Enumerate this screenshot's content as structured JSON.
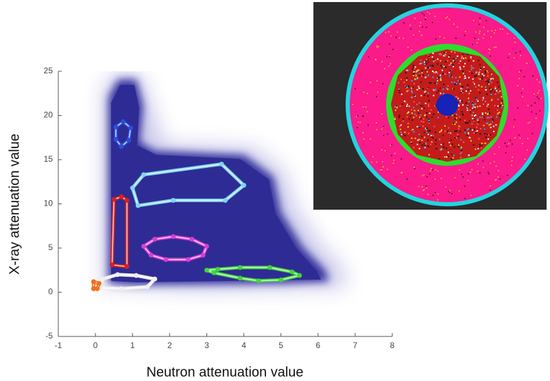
{
  "chart_data": {
    "type": "polygon",
    "x_label": "Neutron attenuation value",
    "y_label": "X-ray attenuation value",
    "xlim": [
      -1,
      8
    ],
    "xticks": [
      -1,
      0,
      1,
      2,
      3,
      4,
      5,
      6,
      7,
      8
    ],
    "ylim": [
      -5,
      25
    ],
    "yticks": [
      -5,
      0,
      5,
      10,
      15,
      20,
      25
    ],
    "series": [
      {
        "color": "#2a4fd8",
        "x": [
          0.55,
          0.75,
          0.95,
          0.9,
          0.7,
          0.55
        ],
        "values": [
          18.7,
          19.3,
          18.6,
          17.2,
          16.5,
          17.3
        ]
      },
      {
        "color": "#7fd3f2",
        "x": [
          1.0,
          1.3,
          3.4,
          4.0,
          3.5,
          2.1,
          1.15
        ],
        "values": [
          11.8,
          13.3,
          14.5,
          12.1,
          10.4,
          10.4,
          9.8
        ]
      },
      {
        "color": "#d42020",
        "x": [
          0.45,
          0.5,
          0.7,
          0.85,
          0.85
        ],
        "values": [
          3.1,
          10.5,
          10.8,
          10.4,
          2.9
        ]
      },
      {
        "color": "#d43fd4",
        "x": [
          1.3,
          1.6,
          2.1,
          2.6,
          3.0,
          2.9,
          2.5,
          1.9,
          1.5
        ],
        "values": [
          5.2,
          6.0,
          6.3,
          6.0,
          5.2,
          4.2,
          3.7,
          3.7,
          4.2
        ]
      },
      {
        "color": "#3fd43f",
        "x": [
          3.0,
          3.2,
          3.9,
          4.4,
          5.0,
          5.5,
          5.3,
          4.7,
          3.9,
          3.3
        ],
        "values": [
          2.5,
          2.2,
          1.6,
          1.3,
          1.4,
          1.9,
          2.3,
          2.8,
          2.8,
          2.6
        ]
      },
      {
        "color": "#eeeeee",
        "x": [
          0.1,
          0.2,
          0.6,
          1.1,
          1.6,
          1.4,
          0.7
        ],
        "values": [
          0.5,
          1.5,
          2.0,
          1.9,
          1.5,
          0.6,
          0.4
        ]
      },
      {
        "color": "#f07020",
        "x": [
          -0.05,
          -0.05,
          0.1,
          0.05
        ],
        "values": [
          0.4,
          1.2,
          1.0,
          0.4
        ]
      }
    ]
  }
}
